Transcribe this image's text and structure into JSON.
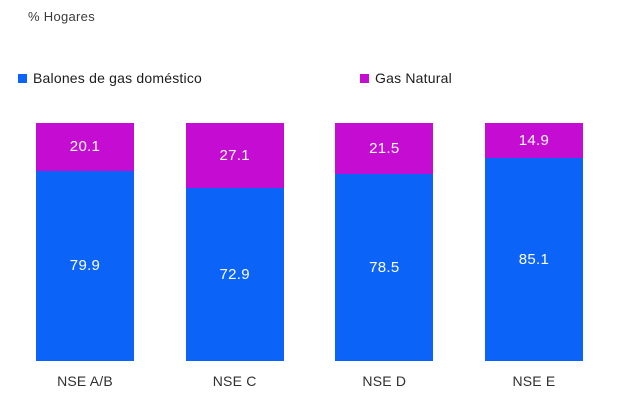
{
  "title": "% Hogares",
  "legend": [
    {
      "label": "Balones de gas doméstico",
      "color": "#0b63f8"
    },
    {
      "label": "Gas Natural",
      "color": "#c40cd2"
    }
  ],
  "chart_data": {
    "type": "bar",
    "stacked": true,
    "title": "% Hogares",
    "categories": [
      "NSE A/B",
      "NSE C",
      "NSE D",
      "NSE E"
    ],
    "series": [
      {
        "name": "Gas Natural",
        "color": "#c40cd2",
        "position": "top",
        "values": [
          20.1,
          27.1,
          21.5,
          14.9
        ]
      },
      {
        "name": "Balones de gas doméstico",
        "color": "#0b63f8",
        "position": "bottom",
        "values": [
          79.9,
          72.9,
          78.5,
          85.1
        ]
      }
    ],
    "ylim": [
      0,
      100
    ],
    "grid": false,
    "axis_lines": false,
    "legend_position": "top",
    "value_labels": "inside-white"
  }
}
